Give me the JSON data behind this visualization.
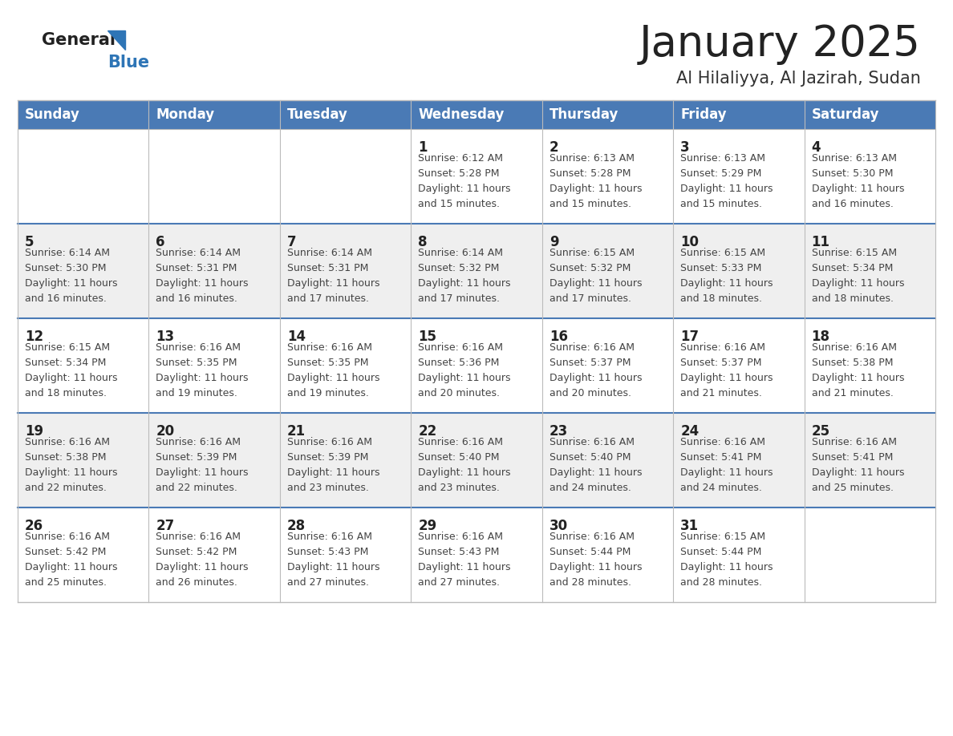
{
  "title": "January 2025",
  "subtitle": "Al Hilaliyya, Al Jazirah, Sudan",
  "header_bg": "#4a7ab5",
  "header_text": "#FFFFFF",
  "header_days": [
    "Sunday",
    "Monday",
    "Tuesday",
    "Wednesday",
    "Thursday",
    "Friday",
    "Saturday"
  ],
  "odd_row_bg": "#FFFFFF",
  "even_row_bg": "#EFEFEF",
  "day_number_color": "#222222",
  "info_text_color": "#444444",
  "title_color": "#222222",
  "subtitle_color": "#333333",
  "logo_general_color": "#222222",
  "logo_blue_color": "#2E75B6",
  "border_color": "#BBBBBB",
  "row_separator_color": "#4a7ab5",
  "weeks": [
    {
      "days": [
        {
          "day": null,
          "info": null
        },
        {
          "day": null,
          "info": null
        },
        {
          "day": null,
          "info": null
        },
        {
          "day": 1,
          "info": "Sunrise: 6:12 AM\nSunset: 5:28 PM\nDaylight: 11 hours\nand 15 minutes."
        },
        {
          "day": 2,
          "info": "Sunrise: 6:13 AM\nSunset: 5:28 PM\nDaylight: 11 hours\nand 15 minutes."
        },
        {
          "day": 3,
          "info": "Sunrise: 6:13 AM\nSunset: 5:29 PM\nDaylight: 11 hours\nand 15 minutes."
        },
        {
          "day": 4,
          "info": "Sunrise: 6:13 AM\nSunset: 5:30 PM\nDaylight: 11 hours\nand 16 minutes."
        }
      ]
    },
    {
      "days": [
        {
          "day": 5,
          "info": "Sunrise: 6:14 AM\nSunset: 5:30 PM\nDaylight: 11 hours\nand 16 minutes."
        },
        {
          "day": 6,
          "info": "Sunrise: 6:14 AM\nSunset: 5:31 PM\nDaylight: 11 hours\nand 16 minutes."
        },
        {
          "day": 7,
          "info": "Sunrise: 6:14 AM\nSunset: 5:31 PM\nDaylight: 11 hours\nand 17 minutes."
        },
        {
          "day": 8,
          "info": "Sunrise: 6:14 AM\nSunset: 5:32 PM\nDaylight: 11 hours\nand 17 minutes."
        },
        {
          "day": 9,
          "info": "Sunrise: 6:15 AM\nSunset: 5:32 PM\nDaylight: 11 hours\nand 17 minutes."
        },
        {
          "day": 10,
          "info": "Sunrise: 6:15 AM\nSunset: 5:33 PM\nDaylight: 11 hours\nand 18 minutes."
        },
        {
          "day": 11,
          "info": "Sunrise: 6:15 AM\nSunset: 5:34 PM\nDaylight: 11 hours\nand 18 minutes."
        }
      ]
    },
    {
      "days": [
        {
          "day": 12,
          "info": "Sunrise: 6:15 AM\nSunset: 5:34 PM\nDaylight: 11 hours\nand 18 minutes."
        },
        {
          "day": 13,
          "info": "Sunrise: 6:16 AM\nSunset: 5:35 PM\nDaylight: 11 hours\nand 19 minutes."
        },
        {
          "day": 14,
          "info": "Sunrise: 6:16 AM\nSunset: 5:35 PM\nDaylight: 11 hours\nand 19 minutes."
        },
        {
          "day": 15,
          "info": "Sunrise: 6:16 AM\nSunset: 5:36 PM\nDaylight: 11 hours\nand 20 minutes."
        },
        {
          "day": 16,
          "info": "Sunrise: 6:16 AM\nSunset: 5:37 PM\nDaylight: 11 hours\nand 20 minutes."
        },
        {
          "day": 17,
          "info": "Sunrise: 6:16 AM\nSunset: 5:37 PM\nDaylight: 11 hours\nand 21 minutes."
        },
        {
          "day": 18,
          "info": "Sunrise: 6:16 AM\nSunset: 5:38 PM\nDaylight: 11 hours\nand 21 minutes."
        }
      ]
    },
    {
      "days": [
        {
          "day": 19,
          "info": "Sunrise: 6:16 AM\nSunset: 5:38 PM\nDaylight: 11 hours\nand 22 minutes."
        },
        {
          "day": 20,
          "info": "Sunrise: 6:16 AM\nSunset: 5:39 PM\nDaylight: 11 hours\nand 22 minutes."
        },
        {
          "day": 21,
          "info": "Sunrise: 6:16 AM\nSunset: 5:39 PM\nDaylight: 11 hours\nand 23 minutes."
        },
        {
          "day": 22,
          "info": "Sunrise: 6:16 AM\nSunset: 5:40 PM\nDaylight: 11 hours\nand 23 minutes."
        },
        {
          "day": 23,
          "info": "Sunrise: 6:16 AM\nSunset: 5:40 PM\nDaylight: 11 hours\nand 24 minutes."
        },
        {
          "day": 24,
          "info": "Sunrise: 6:16 AM\nSunset: 5:41 PM\nDaylight: 11 hours\nand 24 minutes."
        },
        {
          "day": 25,
          "info": "Sunrise: 6:16 AM\nSunset: 5:41 PM\nDaylight: 11 hours\nand 25 minutes."
        }
      ]
    },
    {
      "days": [
        {
          "day": 26,
          "info": "Sunrise: 6:16 AM\nSunset: 5:42 PM\nDaylight: 11 hours\nand 25 minutes."
        },
        {
          "day": 27,
          "info": "Sunrise: 6:16 AM\nSunset: 5:42 PM\nDaylight: 11 hours\nand 26 minutes."
        },
        {
          "day": 28,
          "info": "Sunrise: 6:16 AM\nSunset: 5:43 PM\nDaylight: 11 hours\nand 27 minutes."
        },
        {
          "day": 29,
          "info": "Sunrise: 6:16 AM\nSunset: 5:43 PM\nDaylight: 11 hours\nand 27 minutes."
        },
        {
          "day": 30,
          "info": "Sunrise: 6:16 AM\nSunset: 5:44 PM\nDaylight: 11 hours\nand 28 minutes."
        },
        {
          "day": 31,
          "info": "Sunrise: 6:15 AM\nSunset: 5:44 PM\nDaylight: 11 hours\nand 28 minutes."
        },
        {
          "day": null,
          "info": null
        }
      ]
    }
  ]
}
